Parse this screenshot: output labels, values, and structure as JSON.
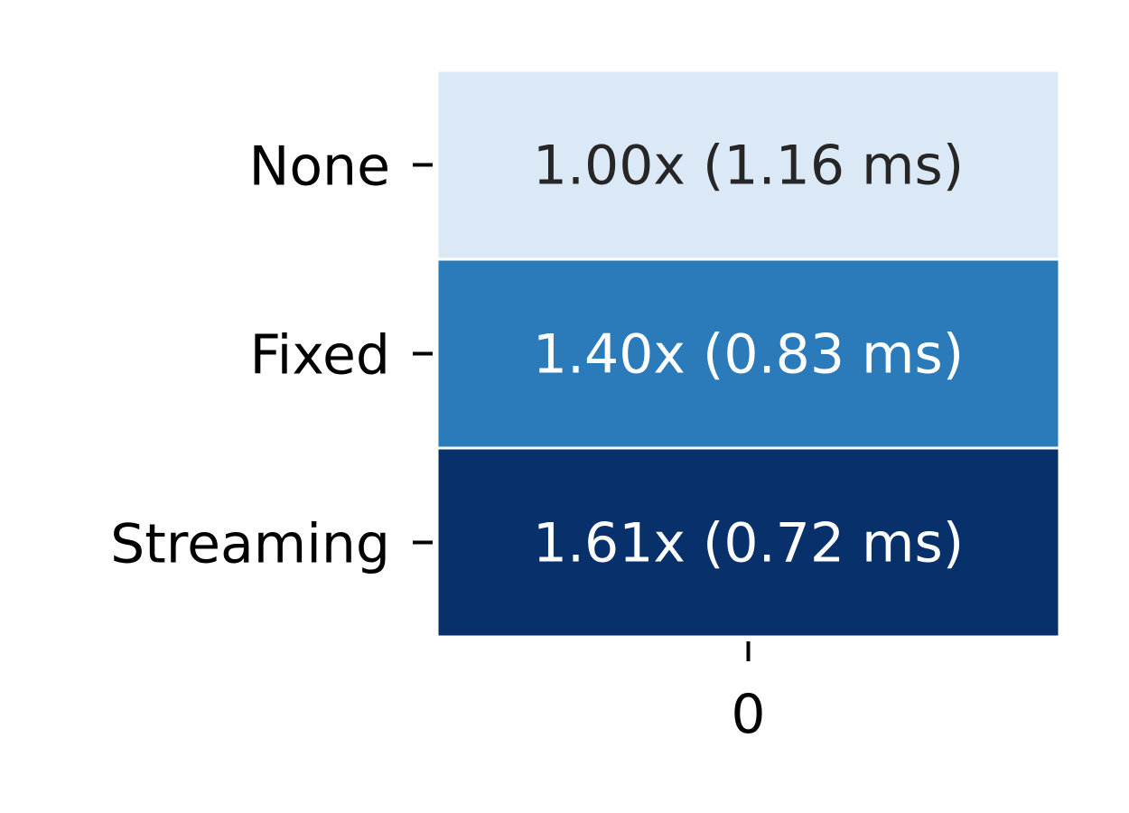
{
  "chart_data": {
    "type": "heatmap",
    "rows": [
      "None",
      "Fixed",
      "Streaming"
    ],
    "columns": [
      "0"
    ],
    "values": [
      [
        1.0
      ],
      [
        1.4
      ],
      [
        1.61
      ]
    ],
    "annotations": [
      [
        "1.00x (1.16 ms)"
      ],
      [
        "1.40x (0.83 ms)"
      ],
      [
        "1.61x (0.72 ms)"
      ]
    ],
    "colormap": "Blues",
    "cell_colors": [
      "#dbe9f6",
      "#2b7bba",
      "#08306b"
    ],
    "annotation_colors": [
      "#262626",
      "#ffffff",
      "#ffffff"
    ],
    "colorbar": false,
    "title": "",
    "xlabel": "",
    "ylabel": ""
  }
}
